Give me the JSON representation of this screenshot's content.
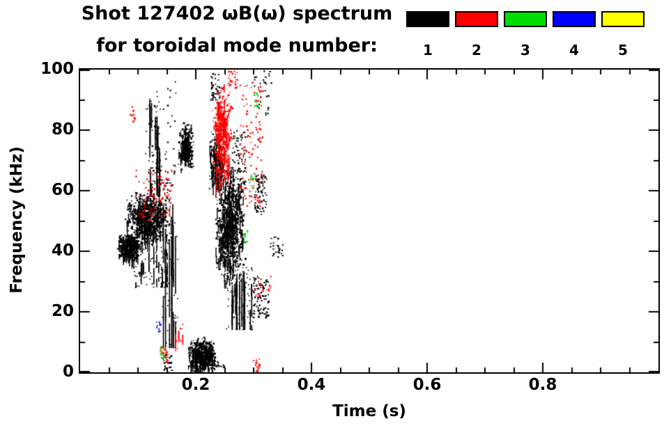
{
  "title": {
    "line1": "Shot 127402 ωB(ω) spectrum",
    "line2": "for toroidal mode number:"
  },
  "legend": {
    "entries": [
      {
        "label": "1",
        "color": "#000000"
      },
      {
        "label": "2",
        "color": "#ff0000"
      },
      {
        "label": "3",
        "color": "#00dd00"
      },
      {
        "label": "4",
        "color": "#0000ff"
      },
      {
        "label": "5",
        "color": "#ffff00"
      }
    ]
  },
  "chart_data": {
    "type": "scatter",
    "title": "Shot 127402 ωB(ω) spectrum for toroidal mode number: 1 2 3 4 5",
    "xlabel": "Time (s)",
    "ylabel": "Frequency (kHz)",
    "xlim": [
      0,
      1
    ],
    "ylim": [
      0,
      100
    ],
    "xticks": [
      0.2,
      0.4,
      0.6,
      0.8
    ],
    "yticks": [
      0,
      20,
      40,
      60,
      80,
      100
    ],
    "xminor_step": 0.05,
    "yminor_step": 10,
    "grid": false,
    "legend_position": "top-right",
    "series": [
      {
        "name": "n=1",
        "color": "#000000",
        "clusters": [
          {
            "t": [
              0.062,
              0.105
            ],
            "f": [
              37,
              46
            ],
            "n": 350,
            "shape": "blob"
          },
          {
            "t": [
              0.075,
              0.155
            ],
            "f": [
              42,
              60
            ],
            "n": 700,
            "shape": "blob"
          },
          {
            "t": [
              0.09,
              0.15
            ],
            "f": [
              28,
              42
            ],
            "n": 200,
            "shape": "streaks"
          },
          {
            "t": [
              0.112,
              0.138
            ],
            "f": [
              58,
              93
            ],
            "n": 140,
            "shape": "streaks"
          },
          {
            "t": [
              0.14,
              0.168
            ],
            "f": [
              8,
              56
            ],
            "n": 150,
            "shape": "streaks"
          },
          {
            "t": [
              0.168,
              0.196
            ],
            "f": [
              67,
              83
            ],
            "n": 260,
            "shape": "blob"
          },
          {
            "t": [
              0.185,
              0.235
            ],
            "f": [
              0,
              12
            ],
            "n": 450,
            "shape": "blob"
          },
          {
            "t": [
              0.222,
              0.248
            ],
            "f": [
              58,
              82
            ],
            "n": 220,
            "shape": "blob"
          },
          {
            "t": [
              0.232,
              0.286
            ],
            "f": [
              28,
              70
            ],
            "n": 850,
            "shape": "blob"
          },
          {
            "t": [
              0.252,
              0.298
            ],
            "f": [
              14,
              36
            ],
            "n": 260,
            "shape": "streaks"
          },
          {
            "t": [
              0.298,
              0.325
            ],
            "f": [
              18,
              32
            ],
            "n": 90,
            "shape": "dots"
          },
          {
            "t": [
              0.3,
              0.322
            ],
            "f": [
              52,
              66
            ],
            "n": 70,
            "shape": "dots"
          },
          {
            "t": [
              0.328,
              0.35
            ],
            "f": [
              38,
              45
            ],
            "n": 25,
            "shape": "dots"
          },
          {
            "t": [
              0.118,
              0.165
            ],
            "f": [
              60,
              97
            ],
            "n": 60,
            "shape": "dots"
          },
          {
            "t": [
              0.225,
              0.24
            ],
            "f": [
              90,
              99
            ],
            "n": 40,
            "shape": "dots"
          },
          {
            "t": [
              0.26,
              0.285
            ],
            "f": [
              66,
              80
            ],
            "n": 60,
            "shape": "dots"
          },
          {
            "t": [
              0.3,
              0.33
            ],
            "f": [
              85,
              100
            ],
            "n": 30,
            "shape": "dots"
          },
          {
            "t": [
              0.143,
              0.158
            ],
            "f": [
              0,
              6
            ],
            "n": 30,
            "shape": "dots"
          },
          {
            "t": [
              0.225,
              0.25
            ],
            "f": [
              0,
              4
            ],
            "n": 20,
            "shape": "dots"
          }
        ]
      },
      {
        "name": "n=2",
        "color": "#ff0000",
        "clusters": [
          {
            "t": [
              0.228,
              0.262
            ],
            "f": [
              60,
              96
            ],
            "n": 380,
            "shape": "blob"
          },
          {
            "t": [
              0.095,
              0.158
            ],
            "f": [
              50,
              67
            ],
            "n": 90,
            "shape": "dots"
          },
          {
            "t": [
              0.085,
              0.095
            ],
            "f": [
              83,
              88
            ],
            "n": 12,
            "shape": "dots"
          },
          {
            "t": [
              0.275,
              0.315
            ],
            "f": [
              55,
              96
            ],
            "n": 110,
            "shape": "dots"
          },
          {
            "t": [
              0.162,
              0.178
            ],
            "f": [
              7,
              17
            ],
            "n": 40,
            "shape": "streaks"
          },
          {
            "t": [
              0.138,
              0.152
            ],
            "f": [
              3,
              9
            ],
            "n": 30,
            "shape": "dots"
          },
          {
            "t": [
              0.296,
              0.31
            ],
            "f": [
              0,
              6
            ],
            "n": 15,
            "shape": "dots"
          },
          {
            "t": [
              0.255,
              0.272
            ],
            "f": [
              94,
              100
            ],
            "n": 25,
            "shape": "dots"
          },
          {
            "t": [
              0.3,
              0.33
            ],
            "f": [
              25,
              32
            ],
            "n": 20,
            "shape": "dots"
          }
        ]
      },
      {
        "name": "n=3",
        "color": "#00dd00",
        "clusters": [
          {
            "t": [
              0.3,
              0.308
            ],
            "f": [
              87,
              93
            ],
            "n": 15,
            "shape": "dots"
          },
          {
            "t": [
              0.292,
              0.3
            ],
            "f": [
              61,
              66
            ],
            "n": 10,
            "shape": "dots"
          },
          {
            "t": [
              0.136,
              0.146
            ],
            "f": [
              5,
              9
            ],
            "n": 12,
            "shape": "dots"
          },
          {
            "t": [
              0.282,
              0.29
            ],
            "f": [
              43,
              47
            ],
            "n": 8,
            "shape": "dots"
          }
        ]
      },
      {
        "name": "n=4",
        "color": "#0000ff",
        "clusters": [
          {
            "t": [
              0.13,
              0.138
            ],
            "f": [
              13,
              17
            ],
            "n": 10,
            "shape": "dots"
          }
        ]
      },
      {
        "name": "n=5",
        "color": "#ffff00",
        "clusters": []
      }
    ]
  }
}
